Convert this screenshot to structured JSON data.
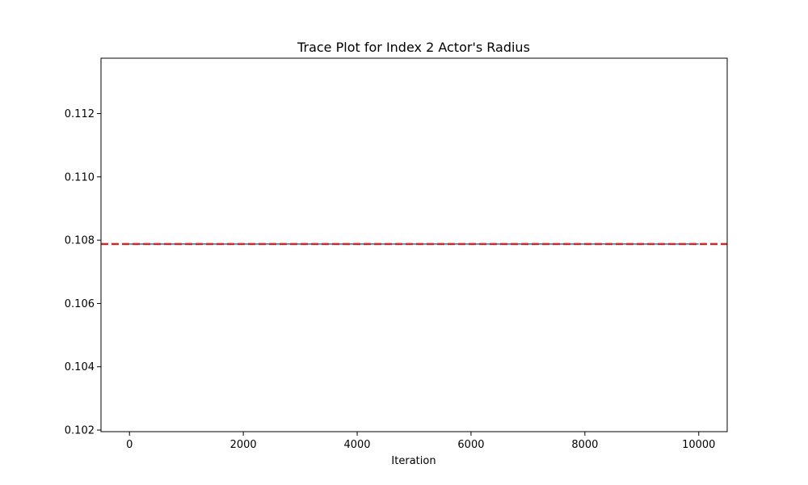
{
  "chart_data": {
    "type": "line",
    "title": "Trace Plot for Index 2 Actor's Radius",
    "xlabel": "Iteration",
    "ylabel": "",
    "xlim": [
      -500,
      10500
    ],
    "ylim": [
      0.10195,
      0.11375
    ],
    "x_ticks": [
      0,
      2000,
      4000,
      6000,
      8000,
      10000
    ],
    "x_tick_labels": [
      "0",
      "2000",
      "4000",
      "6000",
      "8000",
      "10000"
    ],
    "y_ticks": [
      0.102,
      0.104,
      0.106,
      0.108,
      0.11,
      0.112
    ],
    "y_tick_labels": [
      "0.102",
      "0.104",
      "0.106",
      "0.108",
      "0.110",
      "0.112"
    ],
    "grid": false,
    "series": [
      {
        "kind": "trace",
        "color": "#1f77b4",
        "x": [
          0,
          10000
        ],
        "y": [
          0.10788,
          0.10788
        ]
      },
      {
        "kind": "reference",
        "style": "dashed",
        "color": "#d62728",
        "y": 0.10788
      }
    ]
  }
}
